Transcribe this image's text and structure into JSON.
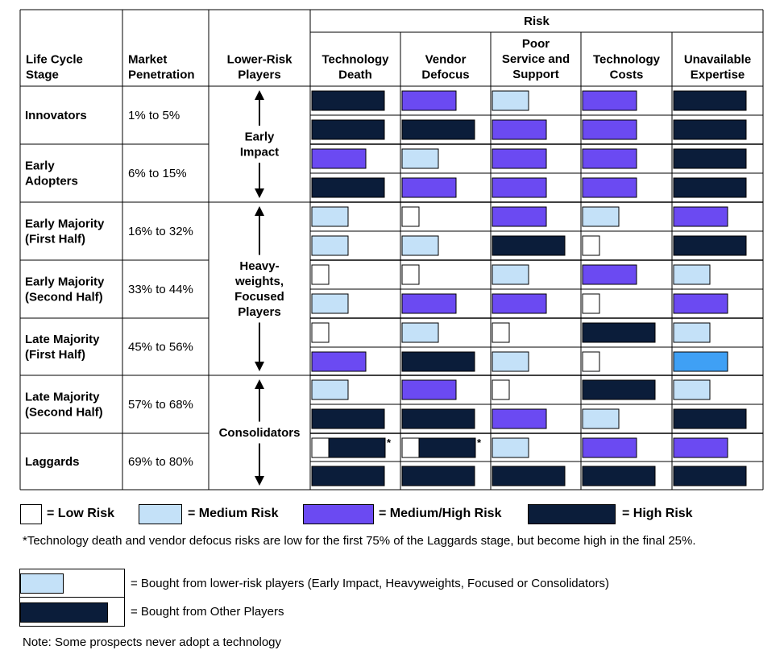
{
  "colors": {
    "low": "#ffffff",
    "medium": "#c4e1f8",
    "medium_high": "#6b4af2",
    "high": "#0b1d3a",
    "bright": "#3fa0f5",
    "border": "#000000"
  },
  "header": {
    "risk": "Risk",
    "stage": [
      "Life Cycle",
      "Stage"
    ],
    "penetration": [
      "Market",
      "Penetration"
    ],
    "players": [
      "Lower-Risk",
      "Players"
    ],
    "risk_cols": [
      [
        "Technology",
        "Death"
      ],
      [
        "Vendor",
        "Defocus"
      ],
      [
        "Poor",
        "Service and",
        "Support"
      ],
      [
        "Technology",
        "Costs"
      ],
      [
        "Unavailable",
        "Expertise"
      ]
    ]
  },
  "stages": [
    {
      "name": [
        "Innovators"
      ],
      "penetration": "1% to 5%"
    },
    {
      "name": [
        "Early",
        "Adopters"
      ],
      "penetration": "6% to 15%"
    },
    {
      "name": [
        "Early Majority",
        "(First Half)"
      ],
      "penetration": "16% to 32%"
    },
    {
      "name": [
        "Early Majority",
        "(Second Half)"
      ],
      "penetration": "33% to 44%"
    },
    {
      "name": [
        "Late Majority",
        "(First Half)"
      ],
      "penetration": "45% to 56%"
    },
    {
      "name": [
        "Late Majority",
        "(Second Half)"
      ],
      "penetration": "57% to 68%"
    },
    {
      "name": [
        "Laggards"
      ],
      "penetration": "69% to 80%"
    }
  ],
  "player_groups": [
    {
      "label": [
        "Early",
        "Impact"
      ],
      "from_stage": 0,
      "to_stage": 1
    },
    {
      "label": [
        "Heavy-",
        "weights,",
        "Focused",
        "Players"
      ],
      "from_stage": 2,
      "to_stage": 4
    },
    {
      "label": [
        "Consolidators"
      ],
      "from_stage": 5,
      "to_stage": 6
    }
  ],
  "risk_cells": [
    [
      [
        "H",
        "MH",
        "M",
        "MH",
        "H"
      ],
      [
        "H",
        "H",
        "MH",
        "MH",
        "H"
      ]
    ],
    [
      [
        "MH",
        "M",
        "MH",
        "MH",
        "H"
      ],
      [
        "H",
        "MH",
        "MH",
        "MH",
        "H"
      ]
    ],
    [
      [
        "M",
        "L",
        "MH",
        "M",
        "MH"
      ],
      [
        "M",
        "M",
        "H",
        "L",
        "H"
      ]
    ],
    [
      [
        "L",
        "L",
        "M",
        "MH",
        "M"
      ],
      [
        "M",
        "MH",
        "MH",
        "L",
        "MH"
      ]
    ],
    [
      [
        "L",
        "M",
        "L",
        "H",
        "M"
      ],
      [
        "MH",
        "H",
        "M",
        "L",
        "B"
      ]
    ],
    [
      [
        "M",
        "MH",
        "L",
        "H",
        "M"
      ],
      [
        "H",
        "H",
        "MH",
        "M",
        "H"
      ]
    ],
    [
      [
        "LH",
        "LH",
        "M",
        "MH",
        "MH"
      ],
      [
        "H",
        "H",
        "H",
        "H",
        "H"
      ]
    ]
  ],
  "star": "*",
  "legend": {
    "low": "= Low Risk",
    "medium": "= Medium Risk",
    "medium_high": "= Medium/High Risk",
    "high": "= High Risk"
  },
  "footnote": "*Technology death and vendor defocus risks are low for the first 75% of the Laggards stage, but become high in the final 25%.",
  "bought": {
    "lower_risk": "= Bought from lower-risk players (Early Impact, Heavyweights, Focused or Consolidators)",
    "other": "= Bought from Other Players"
  },
  "note": "Note: Some prospects never adopt a technology"
}
